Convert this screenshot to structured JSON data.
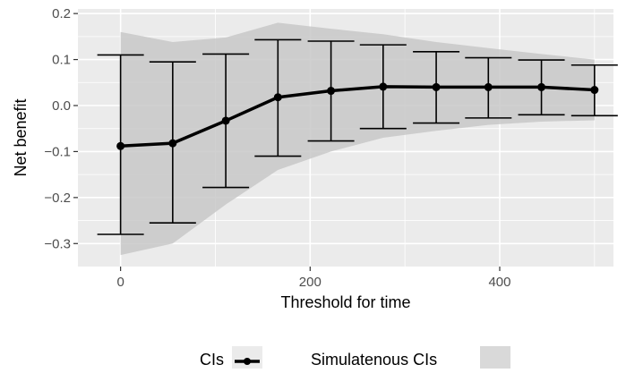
{
  "chart_data": {
    "type": "line",
    "title": "",
    "xlabel": "Threshold for time",
    "ylabel": "Net benefit",
    "xlim": [
      -45,
      520
    ],
    "ylim": [
      -0.35,
      0.21
    ],
    "x_ticks": [
      0,
      200,
      400
    ],
    "x_tick_labels": [
      "0",
      "200",
      "400"
    ],
    "y_ticks": [
      -0.3,
      -0.2,
      -0.1,
      0.0,
      0.1,
      0.2
    ],
    "y_tick_labels": [
      "−0.3",
      "−0.2",
      "−0.1",
      "0.0",
      "0.1",
      "0.2"
    ],
    "grid": true,
    "legend_position": "bottom",
    "series": [
      {
        "name": "CIs",
        "x": [
          0,
          55,
          111,
          166,
          222,
          277,
          333,
          388,
          444,
          500
        ],
        "y": [
          -0.088,
          -0.082,
          -0.033,
          0.018,
          0.032,
          0.041,
          0.04,
          0.04,
          0.04,
          0.034
        ],
        "lower": [
          -0.28,
          -0.255,
          -0.178,
          -0.11,
          -0.077,
          -0.05,
          -0.038,
          -0.027,
          -0.02,
          -0.022
        ],
        "upper": [
          0.11,
          0.095,
          0.112,
          0.143,
          0.14,
          0.132,
          0.117,
          0.104,
          0.099,
          0.088
        ]
      },
      {
        "name": "Simulatenous CIs",
        "x": [
          0,
          55,
          111,
          166,
          222,
          277,
          333,
          388,
          444,
          500
        ],
        "lower": [
          -0.325,
          -0.3,
          -0.215,
          -0.14,
          -0.1,
          -0.07,
          -0.055,
          -0.042,
          -0.035,
          -0.032
        ],
        "upper": [
          0.16,
          0.138,
          0.148,
          0.18,
          0.167,
          0.155,
          0.138,
          0.125,
          0.112,
          0.1
        ]
      }
    ]
  },
  "colors": {
    "panel_background": "#ebebeb",
    "grid_major": "#ffffff",
    "ribbon_fill": "#c8c8c8",
    "line": "#000000",
    "legend_key_fill": "#d9d9d9"
  }
}
